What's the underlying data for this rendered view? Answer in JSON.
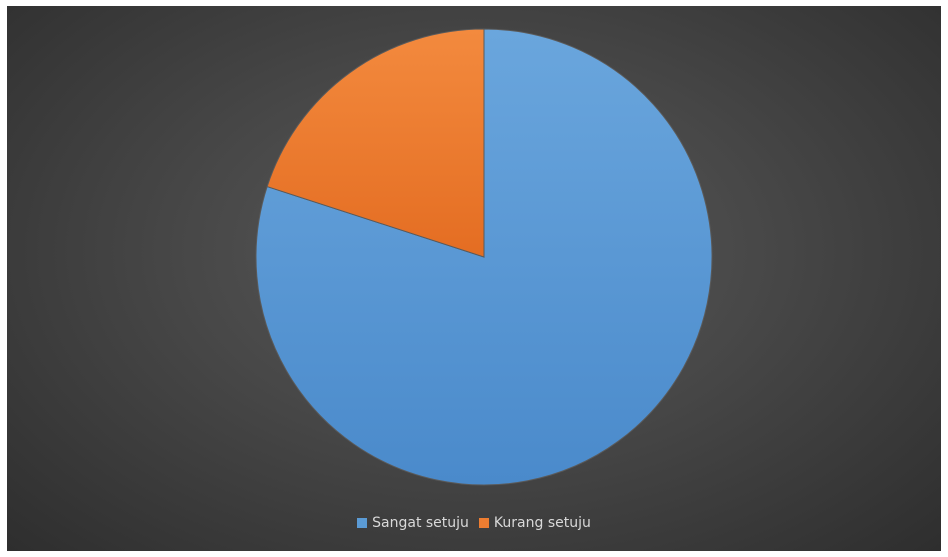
{
  "chart_data": {
    "type": "pie",
    "title": "",
    "slices": [
      {
        "label": "Sangat setuju",
        "value": 80,
        "color": "#5b9bd5"
      },
      {
        "label": "Kurang setuju",
        "value": 20,
        "color": "#ed7d31"
      }
    ],
    "start_angle_deg": 0,
    "direction": "clockwise",
    "legend_position": "bottom",
    "background_color": "#404040"
  },
  "legend": {
    "items": [
      {
        "label": "Sangat setuju",
        "color": "#5b9bd5"
      },
      {
        "label": "Kurang setuju",
        "color": "#ed7d31"
      }
    ]
  }
}
